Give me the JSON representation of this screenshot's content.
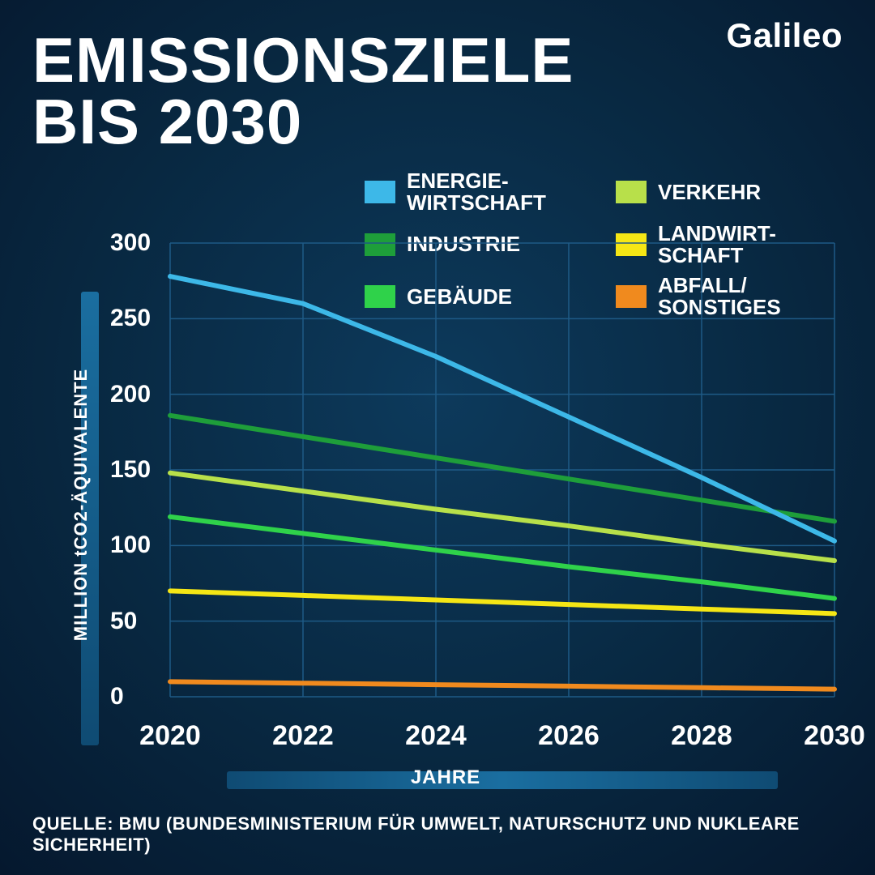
{
  "brand": "Galileo",
  "title": "EMISSIONSZIELE\nBIS 2030",
  "source": "QUELLE:  BMU (BUNDESMINISTERIUM FÜR UMWELT, NATURSCHUTZ UND NUKLEARE SICHERHEIT)",
  "chart": {
    "type": "line",
    "background_color": "#082841",
    "grid_color": "#1e5a86",
    "text_color": "#ffffff",
    "x_label": "JAHRE",
    "y_label": "MILLION tCO2-ÄQUIVALENTE",
    "x_ticks": [
      2020,
      2022,
      2024,
      2026,
      2028,
      2030
    ],
    "xlim": [
      2020,
      2030
    ],
    "y_ticks": [
      0,
      50,
      100,
      150,
      200,
      250,
      300
    ],
    "ylim": [
      0,
      300
    ],
    "line_width": 6,
    "title_fontsize": 78,
    "label_fontsize": 22,
    "tick_fontsize_x": 34,
    "tick_fontsize_y": 30,
    "legend_fontsize": 26,
    "legend": [
      {
        "key": "energie",
        "label": "ENERGIE-\nWIRTSCHAFT",
        "color": "#3db8e8"
      },
      {
        "key": "verkehr",
        "label": "VERKEHR",
        "color": "#b8e04a"
      },
      {
        "key": "industrie",
        "label": "INDUSTRIE",
        "color": "#1e9e3a"
      },
      {
        "key": "landwirt",
        "label": "LANDWIRT-\nSCHAFT",
        "color": "#f5e615"
      },
      {
        "key": "gebaeude",
        "label": "GEBÄUDE",
        "color": "#2fd24a"
      },
      {
        "key": "abfall",
        "label": "ABFALL/\nSONSTIGES",
        "color": "#f08a1e"
      }
    ],
    "series": {
      "energie": {
        "color": "#3db8e8",
        "points": [
          [
            2020,
            278
          ],
          [
            2022,
            260
          ],
          [
            2024,
            225
          ],
          [
            2026,
            185
          ],
          [
            2028,
            145
          ],
          [
            2030,
            103
          ]
        ]
      },
      "industrie": {
        "color": "#1e9e3a",
        "points": [
          [
            2020,
            186
          ],
          [
            2022,
            172
          ],
          [
            2024,
            158
          ],
          [
            2026,
            144
          ],
          [
            2028,
            130
          ],
          [
            2030,
            116
          ]
        ]
      },
      "verkehr": {
        "color": "#b8e04a",
        "points": [
          [
            2020,
            148
          ],
          [
            2022,
            136
          ],
          [
            2024,
            124
          ],
          [
            2026,
            113
          ],
          [
            2028,
            101
          ],
          [
            2030,
            90
          ]
        ]
      },
      "gebaeude": {
        "color": "#2fd24a",
        "points": [
          [
            2020,
            119
          ],
          [
            2022,
            108
          ],
          [
            2024,
            97
          ],
          [
            2026,
            86
          ],
          [
            2028,
            76
          ],
          [
            2030,
            65
          ]
        ]
      },
      "landwirt": {
        "color": "#f5e615",
        "points": [
          [
            2020,
            70
          ],
          [
            2022,
            67
          ],
          [
            2024,
            64
          ],
          [
            2026,
            61
          ],
          [
            2028,
            58
          ],
          [
            2030,
            55
          ]
        ]
      },
      "abfall": {
        "color": "#f08a1e",
        "points": [
          [
            2020,
            10
          ],
          [
            2022,
            9
          ],
          [
            2024,
            8
          ],
          [
            2026,
            7
          ],
          [
            2028,
            6
          ],
          [
            2030,
            5
          ]
        ]
      }
    }
  }
}
